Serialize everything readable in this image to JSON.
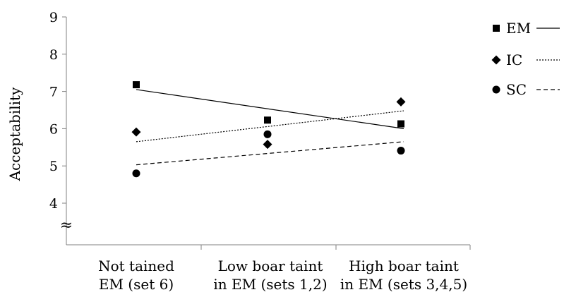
{
  "chart_data": {
    "type": "scatter",
    "ylabel": "Acceptability",
    "ylim": [
      4,
      9
    ],
    "y_ticks": [
      4,
      5,
      6,
      7,
      8,
      9
    ],
    "axis_break_symbol": "≈",
    "categories": [
      [
        "Not tained",
        "EM (set 6)"
      ],
      [
        "Low boar taint",
        "in EM (sets 1,2)"
      ],
      [
        "High boar taint",
        "in EM (sets 3,4,5)"
      ]
    ],
    "legend_position": "right",
    "series": [
      {
        "name": "EM",
        "marker": "square",
        "line": "solid",
        "values": [
          7.18,
          6.23,
          6.13
        ],
        "trend": [
          7.05,
          6.0
        ]
      },
      {
        "name": "IC",
        "marker": "diamond",
        "line": "dotted",
        "values": [
          5.91,
          5.58,
          6.72
        ],
        "trend": [
          5.65,
          6.48
        ]
      },
      {
        "name": "SC",
        "marker": "circle",
        "line": "dashed",
        "values": [
          4.8,
          5.85,
          5.41
        ],
        "trend": [
          5.03,
          5.65
        ]
      }
    ]
  }
}
